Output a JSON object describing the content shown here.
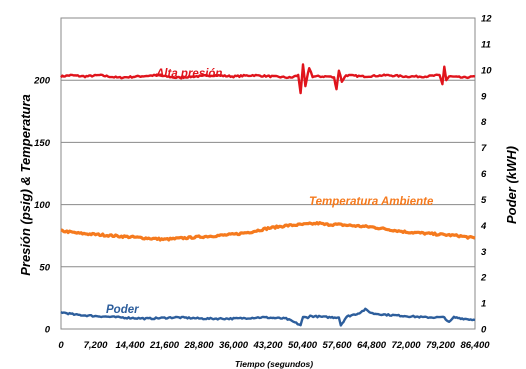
{
  "chart_data": {
    "type": "line",
    "xlabel": "Tiempo (segundos)",
    "ylabel_left": "Presión (psig) & Temperatura",
    "ylabel_right": "Poder (kWH)",
    "x_ticks": [
      "0",
      "7,200",
      "14,400",
      "21,600",
      "28,800",
      "36,000",
      "43,200",
      "50,400",
      "57,600",
      "64,800",
      "72,000",
      "79,200",
      "86,400"
    ],
    "xlim": [
      0,
      86400
    ],
    "y_left_ticks": [
      "0",
      "50",
      "100",
      "150",
      "200"
    ],
    "y_left_lim": [
      0,
      250
    ],
    "y_right_ticks": [
      "0",
      "1",
      "2",
      "3",
      "4",
      "5",
      "6",
      "7",
      "8",
      "9",
      "10",
      "11",
      "12"
    ],
    "y_right_lim": [
      0,
      12
    ],
    "grid": "horizontal",
    "colors": {
      "alta": "#e0141c",
      "temperatura": "#f57a1e",
      "poder": "#2d5e9c"
    },
    "series": [
      {
        "name": "Alta presión",
        "axis": "left",
        "x": [
          0,
          2000,
          5000,
          8000,
          12000,
          16000,
          20000,
          24000,
          28000,
          32000,
          36000,
          40000,
          44000,
          48000,
          49500,
          50000,
          50500,
          51000,
          51800,
          52500,
          56000,
          57000,
          57500,
          58000,
          58600,
          59500,
          63000,
          68000,
          72000,
          76000,
          79000,
          79600,
          80000,
          80400,
          81000,
          84000,
          86400
        ],
        "y": [
          203,
          204,
          203,
          204,
          202,
          203,
          204,
          202,
          203,
          204,
          203,
          204,
          203,
          202,
          204,
          190,
          212,
          195,
          210,
          203,
          203,
          202,
          193,
          208,
          199,
          204,
          203,
          204,
          203,
          203,
          204,
          197,
          211,
          200,
          203,
          202,
          203
        ]
      },
      {
        "name": "Temperatura Ambiente",
        "axis": "left",
        "x": [
          0,
          3600,
          7200,
          10800,
          14400,
          18000,
          21600,
          25200,
          28800,
          32400,
          36000,
          39600,
          43200,
          46800,
          50400,
          54000,
          55000,
          57600,
          61200,
          64800,
          68400,
          72000,
          75600,
          79200,
          82800,
          86400
        ],
        "y": [
          79,
          77,
          76,
          75,
          74,
          73,
          72,
          73,
          74,
          75,
          76,
          78,
          81,
          83,
          84,
          85,
          84,
          84,
          83,
          82,
          80,
          78,
          77,
          76,
          75,
          73
        ]
      },
      {
        "name": "Poder",
        "axis": "right",
        "x": [
          0,
          3000,
          7200,
          12000,
          18000,
          24000,
          30000,
          36000,
          42000,
          47000,
          50000,
          50500,
          51500,
          52000,
          56000,
          58000,
          58400,
          59500,
          60000,
          62000,
          63500,
          65000,
          68000,
          72000,
          76000,
          80000,
          81000,
          82000,
          84000,
          86400
        ],
        "y": [
          0.65,
          0.55,
          0.5,
          0.45,
          0.4,
          0.45,
          0.4,
          0.4,
          0.45,
          0.4,
          0.15,
          0.45,
          0.45,
          0.5,
          0.45,
          0.45,
          0.15,
          0.45,
          0.5,
          0.6,
          0.75,
          0.6,
          0.55,
          0.5,
          0.45,
          0.45,
          0.25,
          0.45,
          0.4,
          0.35
        ]
      }
    ]
  }
}
